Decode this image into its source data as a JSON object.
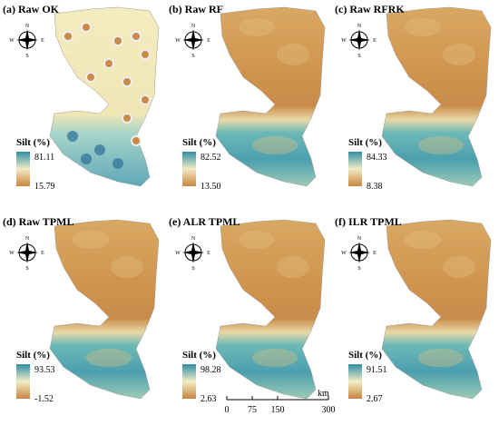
{
  "compass": {
    "north": "N",
    "south": "S",
    "west": "W",
    "east": "E"
  },
  "panels": [
    {
      "title": "(a) Raw OK",
      "legend_title": "Silt (%)",
      "max": "81.11",
      "min": "15.79"
    },
    {
      "title": "(b) Raw RF",
      "legend_title": "Silt (%)",
      "max": "82.52",
      "min": "13.50"
    },
    {
      "title": "(c) Raw RFRK",
      "legend_title": "Silt (%)",
      "max": "84.33",
      "min": "8.38"
    },
    {
      "title": "(d) Raw TPML",
      "legend_title": "Silt (%)",
      "max": "93.53",
      "min": "-1.52"
    },
    {
      "title": "(e) ALR TPML",
      "legend_title": "Silt (%)",
      "max": "98.28",
      "min": "2.63"
    },
    {
      "title": "(f) ILR TPML",
      "legend_title": "Silt (%)",
      "max": "91.51",
      "min": "2.67"
    }
  ],
  "scale_bar": {
    "ticks": [
      "0",
      "75",
      "150",
      "300"
    ],
    "unit": "km"
  }
}
